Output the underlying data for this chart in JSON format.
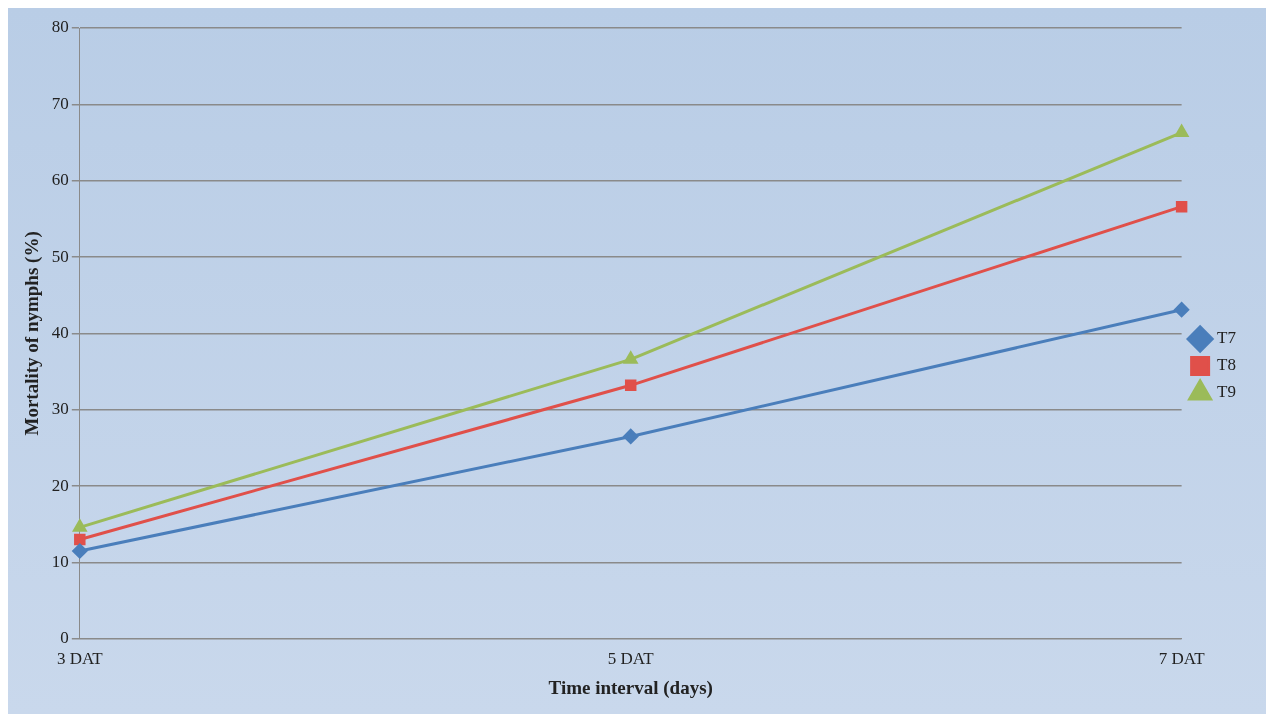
{
  "chart_data": {
    "type": "line",
    "xlabel": "Time interval (days)",
    "ylabel": "Mortality of nymphs (%)",
    "categories": [
      "3 DAT",
      "5 DAT",
      "7 DAT"
    ],
    "series": [
      {
        "name": "T7",
        "color": "#4a7ebb",
        "marker": "diamond",
        "values": [
          11.5,
          26.5,
          43.1
        ]
      },
      {
        "name": "T8",
        "color": "#e0504a",
        "marker": "square",
        "values": [
          13,
          33.2,
          56.6
        ]
      },
      {
        "name": "T9",
        "color": "#9bbb59",
        "marker": "triangle",
        "values": [
          14.6,
          36.6,
          66.3
        ]
      }
    ],
    "ylim": [
      0,
      80
    ],
    "yticks": [
      0,
      10,
      20,
      30,
      40,
      50,
      60,
      70,
      80
    ],
    "grid": "y",
    "legend": "right",
    "line_style": "solid"
  }
}
